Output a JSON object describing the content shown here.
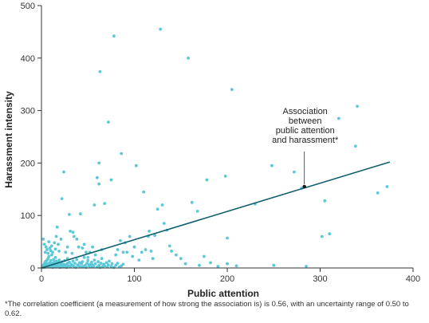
{
  "chart_data": {
    "type": "scatter",
    "xlabel": "Public attention",
    "ylabel": "Harassment intensity",
    "xlim": [
      0,
      400
    ],
    "ylim": [
      0,
      500
    ],
    "xticks": [
      "0",
      "100",
      "200",
      "300",
      "400"
    ],
    "yticks": [
      "0",
      "100",
      "200",
      "300",
      "400",
      "500"
    ],
    "grid": false,
    "colors": {
      "points": "#5bc8d8",
      "line": "#11606e",
      "axis": "#333333"
    },
    "points": [
      [
        1,
        1
      ],
      [
        1,
        3
      ],
      [
        2,
        2
      ],
      [
        2,
        5
      ],
      [
        3,
        1
      ],
      [
        3,
        8
      ],
      [
        4,
        4
      ],
      [
        4,
        12
      ],
      [
        5,
        2
      ],
      [
        5,
        6
      ],
      [
        6,
        9
      ],
      [
        6,
        15
      ],
      [
        7,
        3
      ],
      [
        7,
        18
      ],
      [
        8,
        5
      ],
      [
        8,
        22
      ],
      [
        9,
        10
      ],
      [
        9,
        2
      ],
      [
        10,
        7
      ],
      [
        10,
        14
      ],
      [
        11,
        4
      ],
      [
        11,
        25
      ],
      [
        12,
        9
      ],
      [
        12,
        1
      ],
      [
        13,
        16
      ],
      [
        13,
        6
      ],
      [
        14,
        3
      ],
      [
        14,
        11
      ],
      [
        15,
        8
      ],
      [
        15,
        20
      ],
      [
        16,
        2
      ],
      [
        16,
        13
      ],
      [
        17,
        6
      ],
      [
        18,
        10
      ],
      [
        18,
        3
      ],
      [
        19,
        15
      ],
      [
        20,
        5
      ],
      [
        20,
        1
      ],
      [
        21,
        9
      ],
      [
        22,
        4
      ],
      [
        22,
        12
      ],
      [
        23,
        2
      ],
      [
        24,
        7
      ],
      [
        25,
        14
      ],
      [
        25,
        3
      ],
      [
        26,
        6
      ],
      [
        27,
        1
      ],
      [
        28,
        9
      ],
      [
        28,
        18
      ],
      [
        29,
        4
      ],
      [
        30,
        11
      ],
      [
        31,
        2
      ],
      [
        32,
        7
      ],
      [
        33,
        5
      ],
      [
        34,
        13
      ],
      [
        35,
        3
      ],
      [
        36,
        9
      ],
      [
        37,
        1
      ],
      [
        38,
        16
      ],
      [
        39,
        6
      ],
      [
        40,
        4
      ],
      [
        41,
        10
      ],
      [
        42,
        2
      ],
      [
        43,
        8
      ],
      [
        44,
        12
      ],
      [
        45,
        3
      ],
      [
        46,
        20
      ],
      [
        47,
        5
      ],
      [
        48,
        1
      ],
      [
        49,
        9
      ],
      [
        50,
        14
      ],
      [
        51,
        4
      ],
      [
        52,
        7
      ],
      [
        53,
        2
      ],
      [
        54,
        11
      ],
      [
        55,
        6
      ],
      [
        56,
        3
      ],
      [
        57,
        15
      ],
      [
        58,
        8
      ],
      [
        60,
        2
      ],
      [
        61,
        12
      ],
      [
        62,
        5
      ],
      [
        63,
        1
      ],
      [
        64,
        9
      ],
      [
        65,
        18
      ],
      [
        66,
        3
      ],
      [
        67,
        7
      ],
      [
        68,
        4
      ],
      [
        70,
        10
      ],
      [
        71,
        2
      ],
      [
        72,
        6
      ],
      [
        73,
        13
      ],
      [
        75,
        3
      ],
      [
        76,
        8
      ],
      [
        78,
        1
      ],
      [
        80,
        5
      ],
      [
        82,
        9
      ],
      [
        84,
        2
      ],
      [
        86,
        4
      ],
      [
        88,
        7
      ],
      [
        2,
        55
      ],
      [
        3,
        45
      ],
      [
        4,
        30
      ],
      [
        5,
        40
      ],
      [
        6,
        35
      ],
      [
        7,
        28
      ],
      [
        8,
        50
      ],
      [
        9,
        38
      ],
      [
        10,
        33
      ],
      [
        11,
        42
      ],
      [
        12,
        30
      ],
      [
        14,
        48
      ],
      [
        15,
        36
      ],
      [
        16,
        60
      ],
      [
        17,
        78
      ],
      [
        18,
        45
      ],
      [
        19,
        32
      ],
      [
        21,
        55
      ],
      [
        22,
        132
      ],
      [
        24,
        183
      ],
      [
        26,
        30
      ],
      [
        28,
        40
      ],
      [
        30,
        102
      ],
      [
        31,
        70
      ],
      [
        33,
        28
      ],
      [
        34,
        68
      ],
      [
        35,
        60
      ],
      [
        38,
        55
      ],
      [
        40,
        40
      ],
      [
        42,
        103
      ],
      [
        44,
        38
      ],
      [
        46,
        45
      ],
      [
        48,
        30
      ],
      [
        50,
        20
      ],
      [
        52,
        30
      ],
      [
        55,
        40
      ],
      [
        57,
        120
      ],
      [
        58,
        25
      ],
      [
        60,
        172
      ],
      [
        62,
        160
      ],
      [
        62,
        200
      ],
      [
        63,
        374
      ],
      [
        65,
        35
      ],
      [
        68,
        123
      ],
      [
        72,
        278
      ],
      [
        75,
        168
      ],
      [
        78,
        442
      ],
      [
        80,
        25
      ],
      [
        82,
        35
      ],
      [
        85,
        52
      ],
      [
        86,
        218
      ],
      [
        88,
        30
      ],
      [
        90,
        48
      ],
      [
        92,
        30
      ],
      [
        95,
        60
      ],
      [
        98,
        22
      ],
      [
        100,
        40
      ],
      [
        102,
        195
      ],
      [
        105,
        15
      ],
      [
        108,
        30
      ],
      [
        110,
        145
      ],
      [
        112,
        35
      ],
      [
        115,
        60
      ],
      [
        116,
        70
      ],
      [
        118,
        32
      ],
      [
        120,
        18
      ],
      [
        122,
        62
      ],
      [
        125,
        112
      ],
      [
        128,
        455
      ],
      [
        130,
        120
      ],
      [
        132,
        85
      ],
      [
        135,
        72
      ],
      [
        138,
        42
      ],
      [
        140,
        32
      ],
      [
        145,
        25
      ],
      [
        150,
        18
      ],
      [
        155,
        8
      ],
      [
        158,
        400
      ],
      [
        162,
        125
      ],
      [
        168,
        108
      ],
      [
        170,
        5
      ],
      [
        175,
        22
      ],
      [
        178,
        168
      ],
      [
        182,
        10
      ],
      [
        190,
        3
      ],
      [
        198,
        175
      ],
      [
        200,
        57
      ],
      [
        200,
        8
      ],
      [
        205,
        340
      ],
      [
        210,
        4
      ],
      [
        230,
        122
      ],
      [
        248,
        195
      ],
      [
        250,
        5
      ],
      [
        272,
        183
      ],
      [
        280,
        152
      ],
      [
        285,
        3
      ],
      [
        302,
        60
      ],
      [
        305,
        128
      ],
      [
        310,
        65
      ],
      [
        320,
        285
      ],
      [
        338,
        232
      ],
      [
        340,
        308
      ],
      [
        362,
        143
      ],
      [
        372,
        155
      ]
    ],
    "regression": {
      "x": [
        0,
        375
      ],
      "y": [
        0,
        202
      ]
    },
    "highlight": {
      "x": 283,
      "y": 155
    },
    "annotation": [
      "Association",
      "between",
      "public attention",
      "and harassment*"
    ],
    "footnote": "*The correlation coefficient (a measurement of how strong the association is) is 0.56, with an uncertainty range of 0.50 to 0.62."
  }
}
